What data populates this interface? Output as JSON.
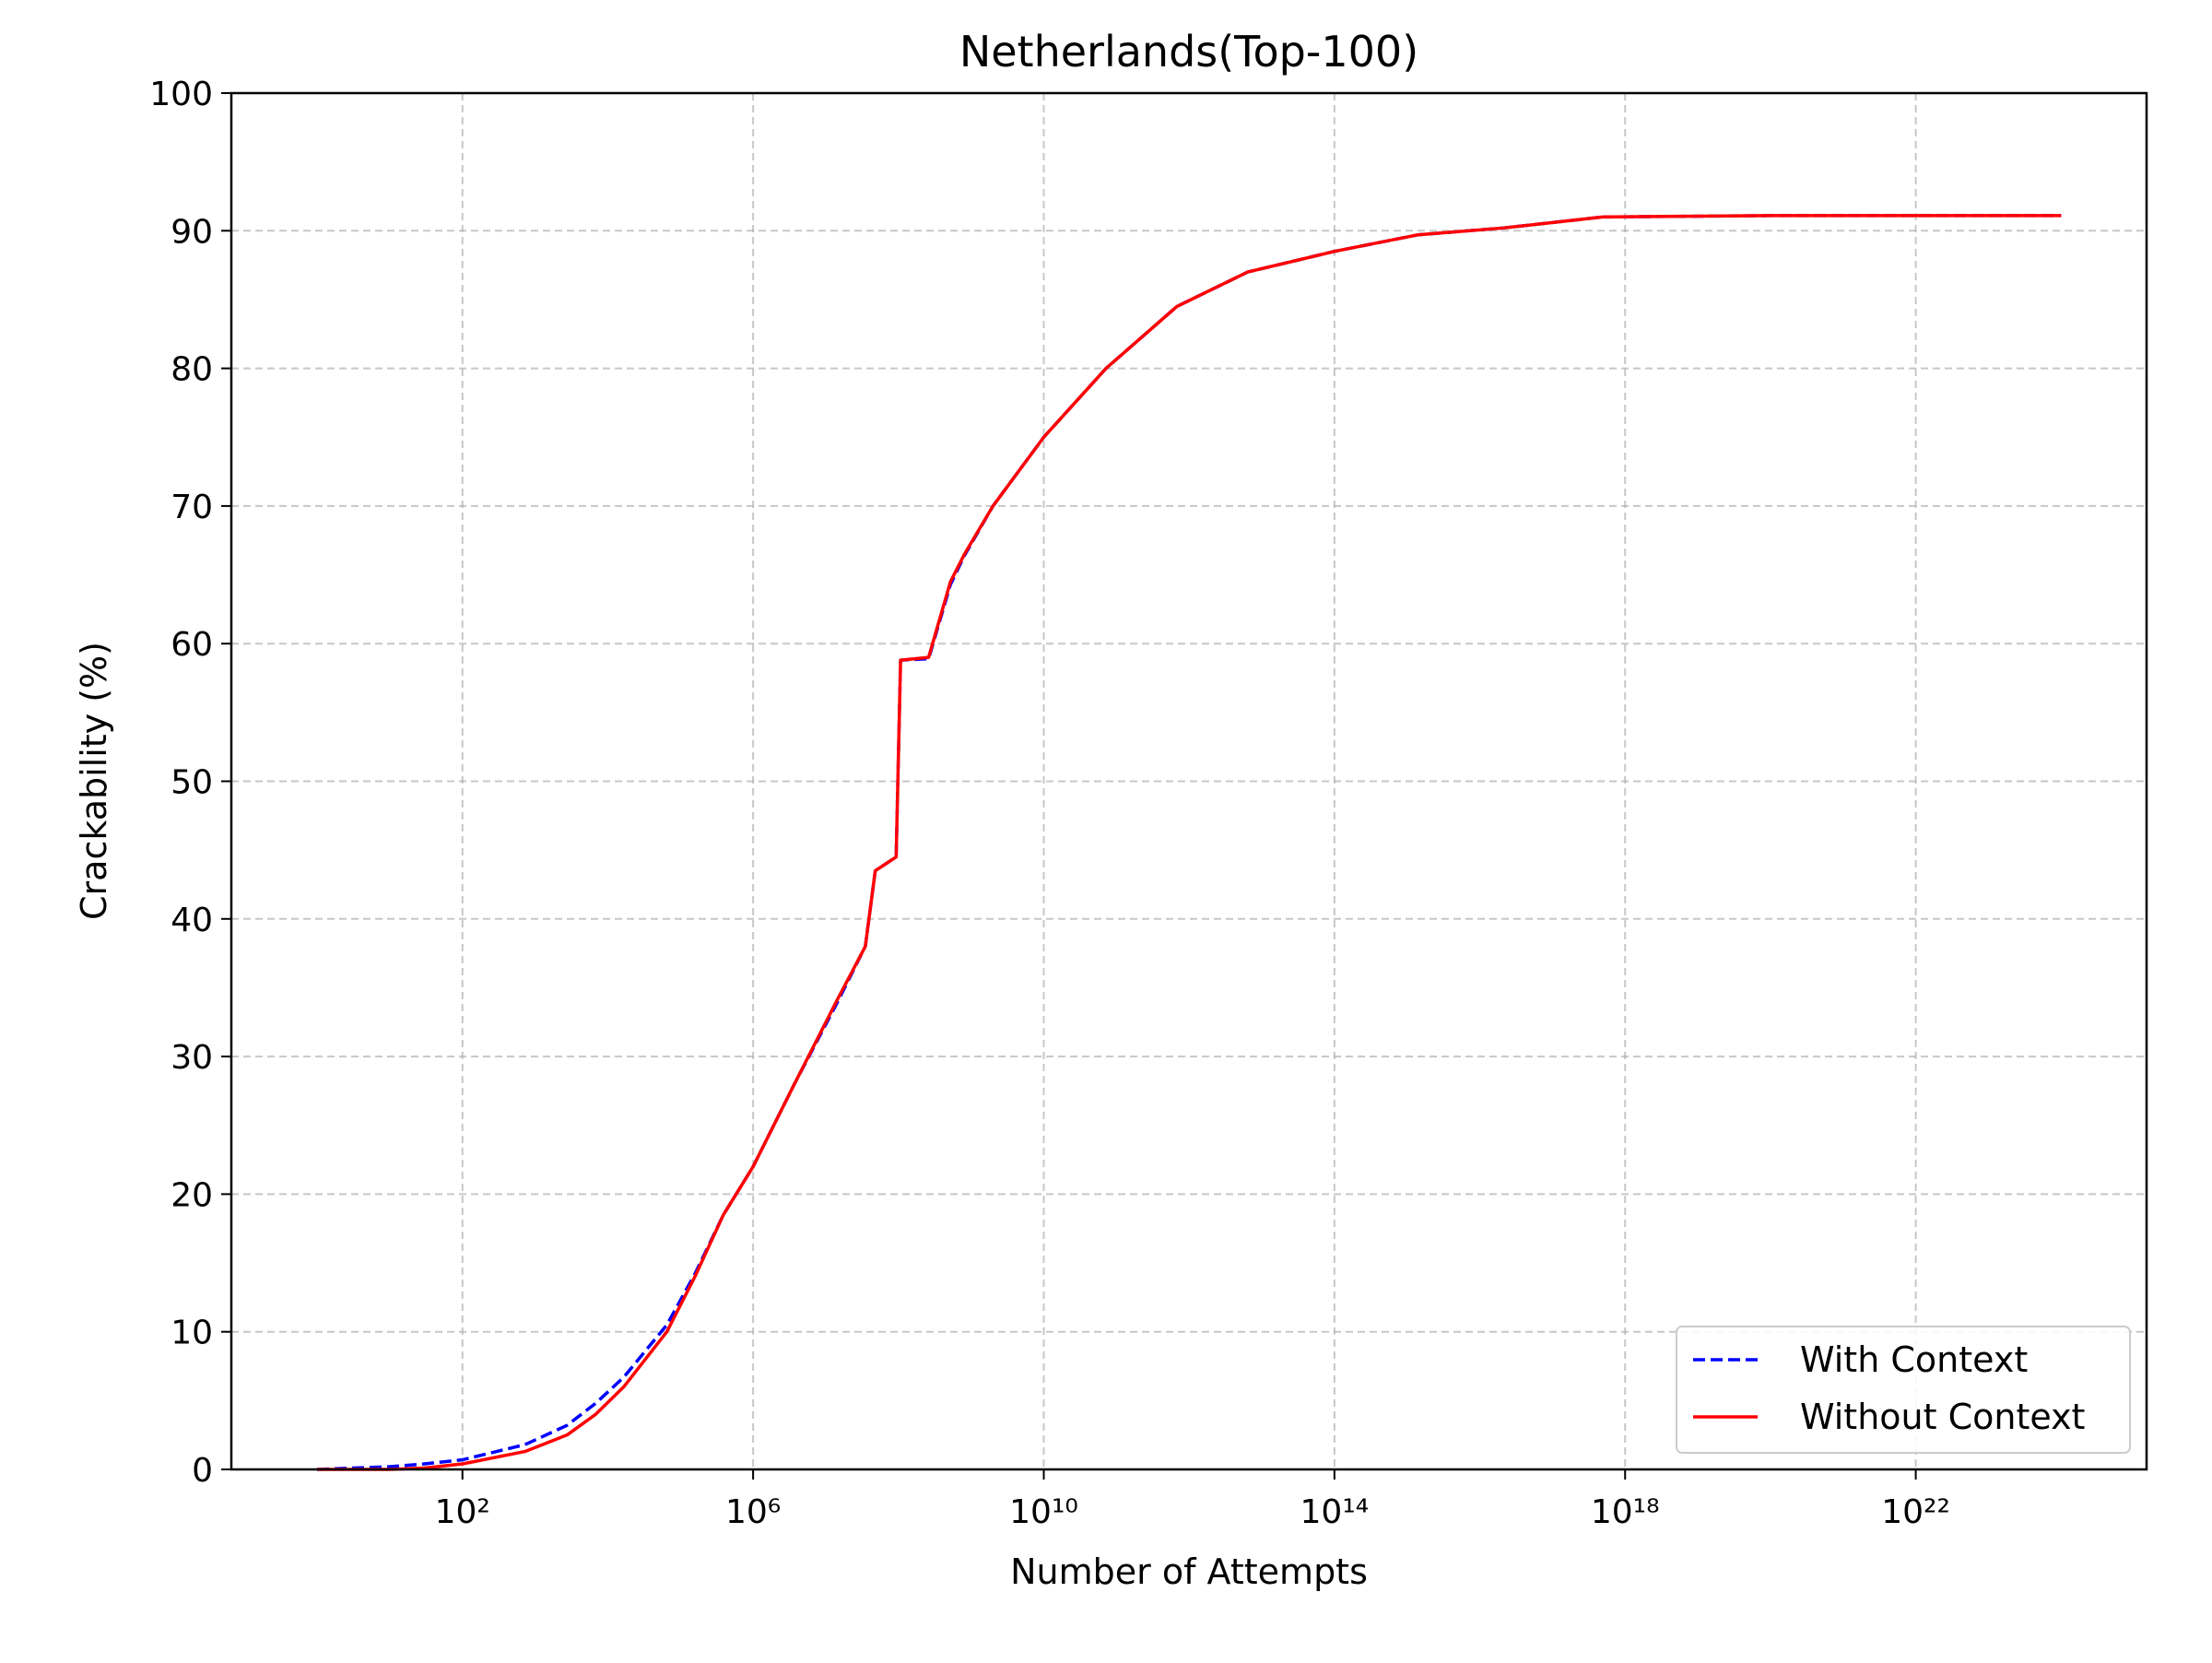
{
  "chart_data": {
    "type": "line",
    "title": "Netherlands(Top-100)",
    "xlabel": "Number of Attempts",
    "ylabel": "Crackability (%)",
    "xscale": "log",
    "xlim": [
      0.066,
      1.5e+25
    ],
    "ylim": [
      0,
      100
    ],
    "xticks": [
      {
        "value": 100,
        "label": "10²"
      },
      {
        "value": 1000000,
        "label": "10⁶"
      },
      {
        "value": 10000000000,
        "label": "10¹⁰"
      },
      {
        "value": 100000000000000,
        "label": "10¹⁴"
      },
      {
        "value": 1e+18,
        "label": "10¹⁸"
      },
      {
        "value": 1e+22,
        "label": "10²²"
      }
    ],
    "yticks": [
      0,
      10,
      20,
      30,
      40,
      50,
      60,
      70,
      80,
      90,
      100
    ],
    "grid": true,
    "legend": "lower right",
    "x": [
      1,
      10,
      30,
      100,
      724,
      2750,
      6800,
      16600,
      65000,
      158000,
      390000,
      1000000,
      3700000,
      14000000,
      35000000,
      48000000,
      93000000,
      107000000,
      260000000,
      520000000,
      810000000,
      2000000000,
      10000000000,
      72000000000,
      680000000000,
      6400000000000,
      100000000000000,
      1400000000000000,
      21000000000000000,
      490000000000000000,
      1e+20,
      1e+24
    ],
    "series": [
      {
        "name": "With Context",
        "color": "#0000ff",
        "dash": true,
        "values": [
          0,
          0.2,
          0.4,
          0.7,
          1.8,
          3.2,
          4.8,
          6.7,
          10.5,
          14.2,
          18.5,
          22,
          28,
          33.8,
          38,
          43.5,
          44.5,
          58.8,
          58.9,
          64.3,
          66.4,
          70,
          75,
          80,
          84.5,
          87,
          88.5,
          89.7,
          90.2,
          91,
          91.1,
          91.1
        ]
      },
      {
        "name": "Without Context",
        "color": "#ff0000",
        "dash": false,
        "values": [
          0,
          0,
          0.1,
          0.4,
          1.3,
          2.5,
          4,
          6,
          10,
          14,
          18.5,
          22,
          28,
          34,
          38,
          43.5,
          44.5,
          58.8,
          59,
          64.5,
          66.5,
          70,
          75,
          80,
          84.5,
          87,
          88.5,
          89.7,
          90.2,
          91,
          91.1,
          91.1
        ]
      }
    ]
  }
}
